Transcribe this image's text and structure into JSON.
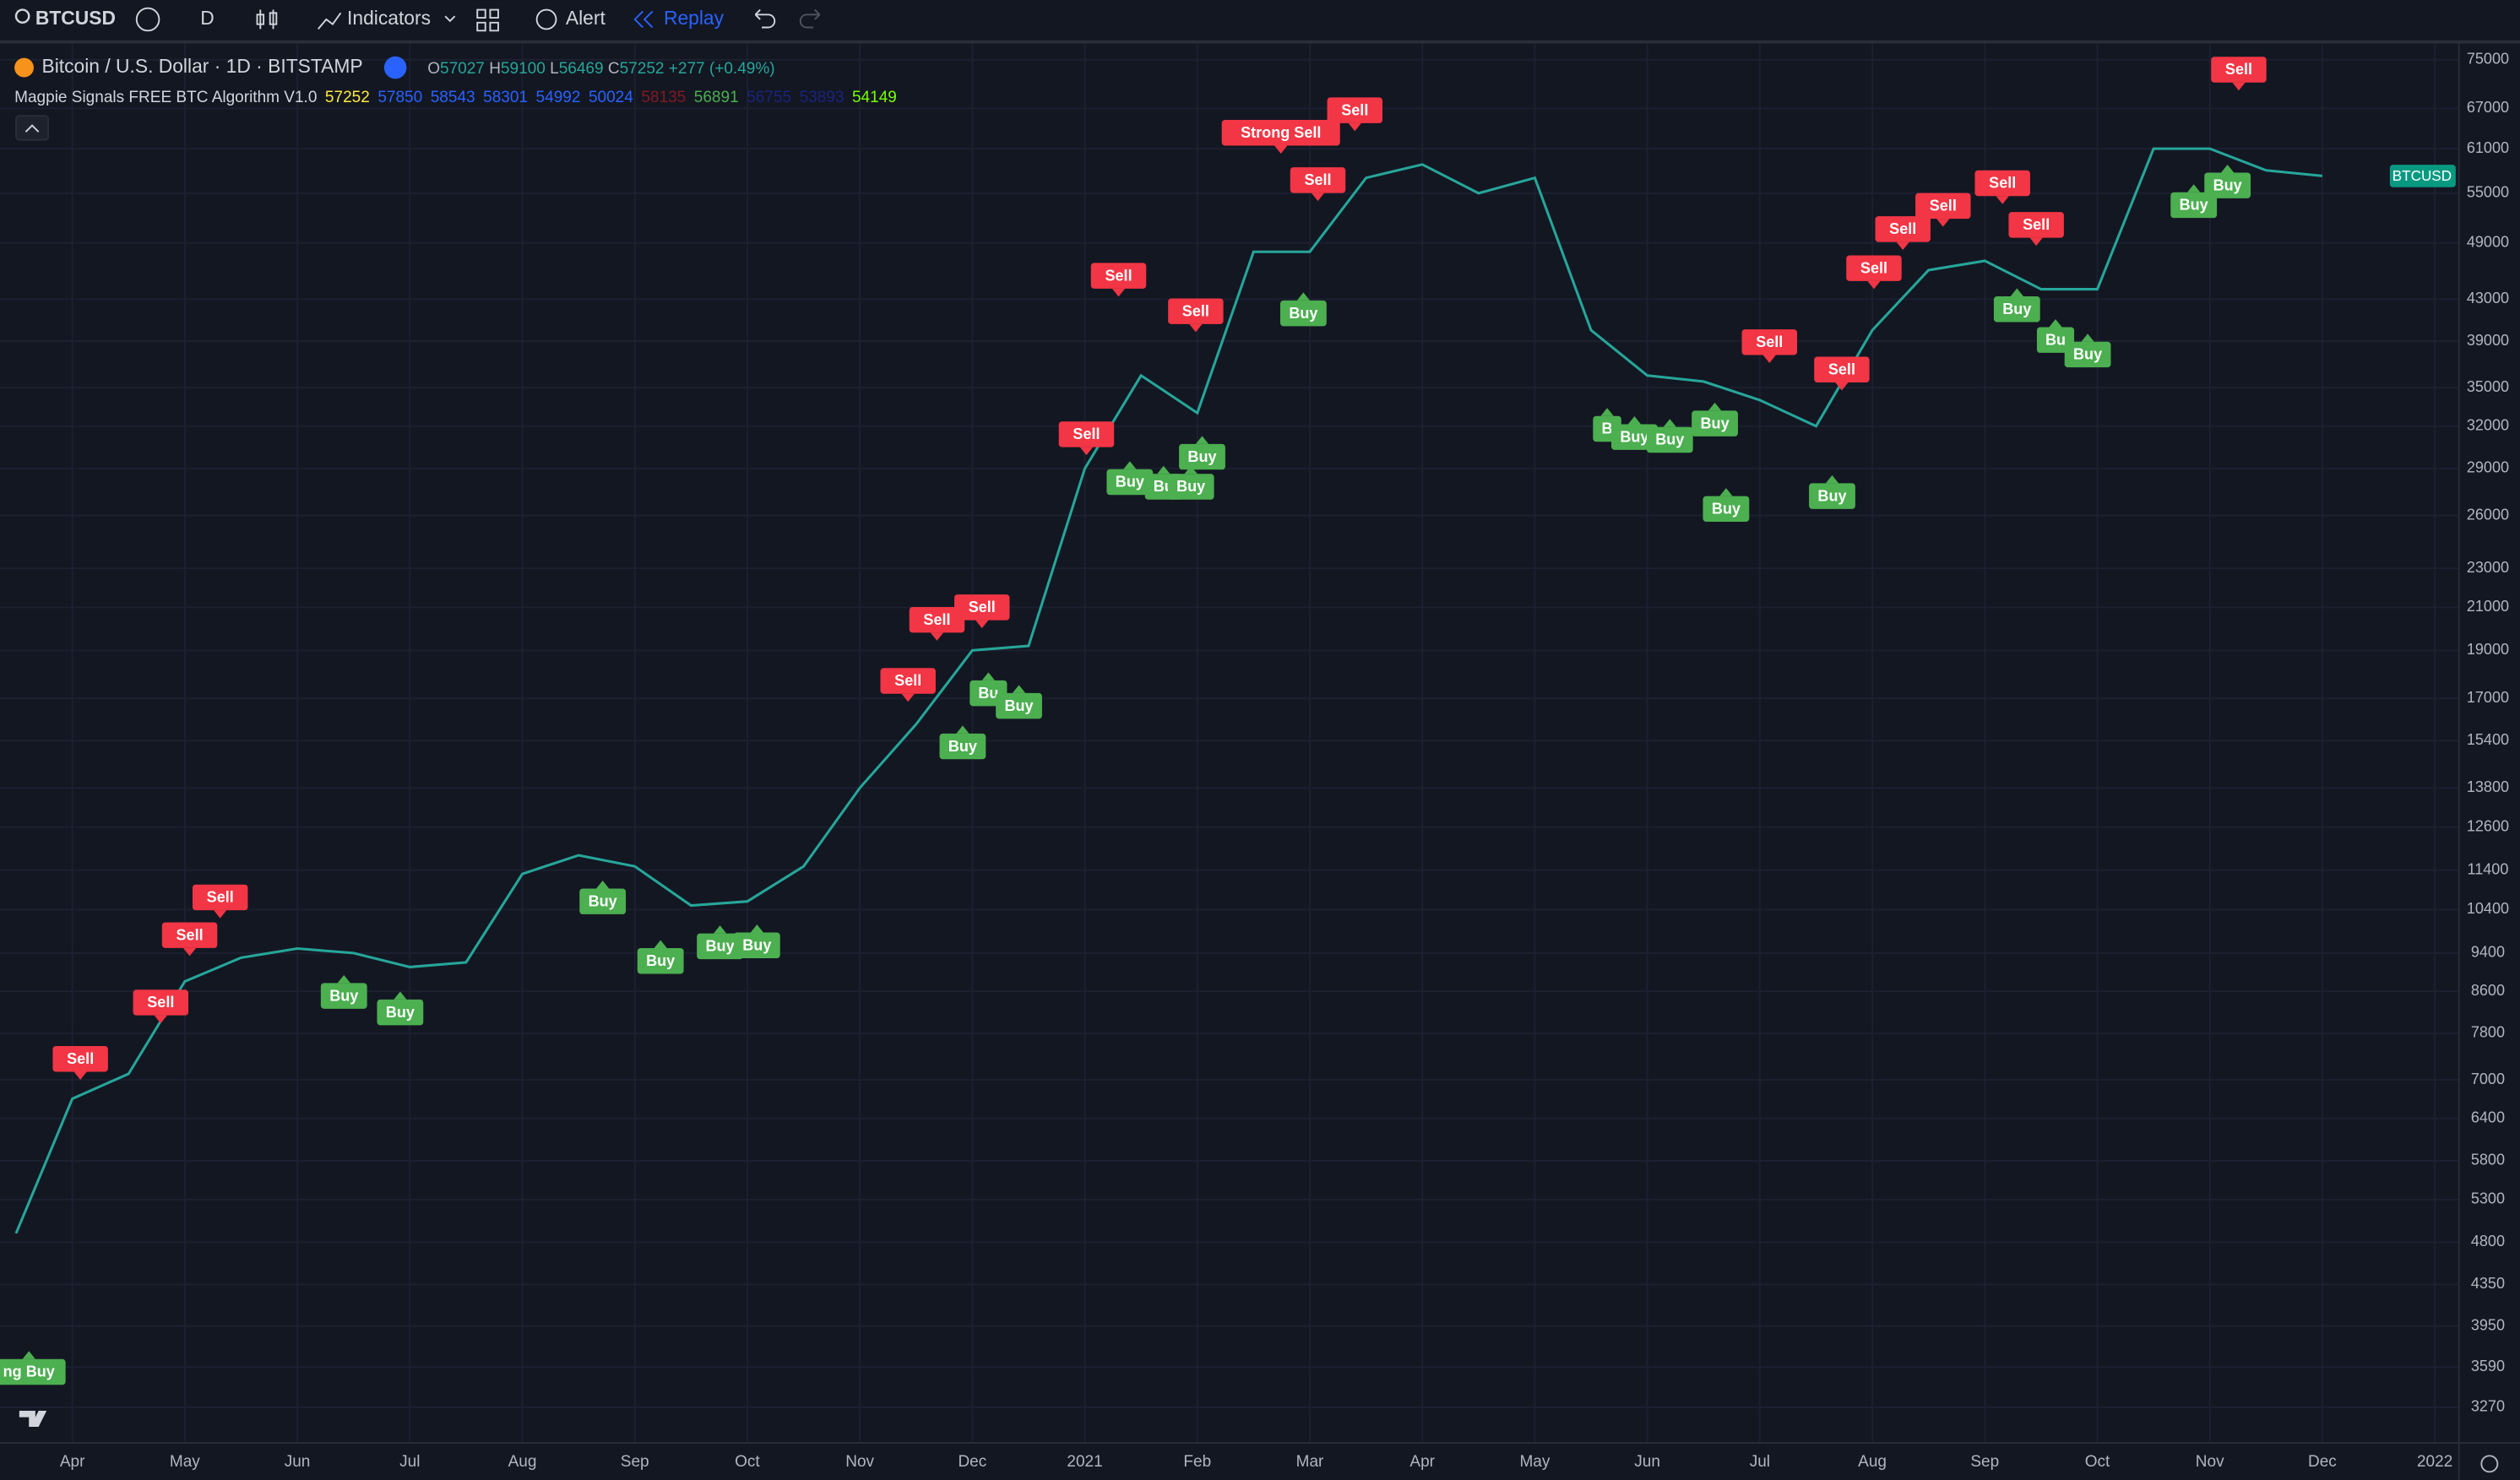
{
  "toolbar": {
    "symbol": "BTCUSD",
    "interval": "D",
    "indicators": "Indicators",
    "alert": "Alert",
    "replay": "Replay"
  },
  "legend": {
    "title": "Bitcoin / U.S. Dollar · 1D · BITSTAMP",
    "o": "O",
    "open": "57027",
    "h": "H",
    "high": "59100",
    "l": "L",
    "low": "56469",
    "c": "C",
    "close": "57252",
    "change": "+277 (+0.49%)",
    "indicator": "Magpie Signals FREE BTC Algorithm V1.0",
    "indicator_values": [
      "57252",
      "57850",
      "58543",
      "58301",
      "54992",
      "50024",
      "58135",
      "56891",
      "56755",
      "53893",
      "54149"
    ]
  },
  "price_tag": "BTCUSD",
  "chart_data": {
    "type": "line",
    "color": "#26a69a",
    "log_scale": true,
    "grid": true,
    "categories": [
      null,
      "Apr",
      null,
      "May",
      null,
      "Jun",
      null,
      "Jul",
      null,
      "Aug",
      null,
      "Sep",
      null,
      "Oct",
      null,
      "Nov",
      null,
      "Dec",
      null,
      "2021",
      null,
      "Feb",
      null,
      "Mar",
      null,
      "Apr",
      null,
      "May",
      null,
      "Jun",
      null,
      "Jul",
      null,
      "Aug",
      null,
      "Sep",
      null,
      "Oct",
      null,
      "Nov",
      null,
      "Dec",
      null,
      "2022"
    ],
    "values": [
      4900,
      6700,
      7100,
      8800,
      9300,
      9500,
      9400,
      9100,
      9200,
      11300,
      11800,
      11500,
      10500,
      10600,
      11500,
      13800,
      16000,
      19000,
      19200,
      29000,
      36000,
      33000,
      48000,
      48000,
      57000,
      58800,
      55000,
      57000,
      40000,
      36000,
      35500,
      34000,
      32000,
      40000,
      46000,
      47000,
      44000,
      44000,
      61000,
      61000,
      58000,
      57252,
      null,
      null
    ],
    "ylim": [
      3010,
      77900
    ],
    "yticks": [
      75000,
      67000,
      61000,
      55000,
      49000,
      43000,
      39000,
      35000,
      32000,
      29000,
      26000,
      23000,
      21000,
      19000,
      17000,
      15400,
      13800,
      12600,
      11400,
      10400,
      9400,
      8600,
      7800,
      7000,
      6400,
      5800,
      5300,
      4800,
      4350,
      3950,
      3590,
      3270
    ],
    "signals": [
      {
        "text": "Sell",
        "value": 7350
      },
      {
        "text": "Sell",
        "value": 8380
      },
      {
        "text": "Sell",
        "value": 9800
      },
      {
        "text": "Sell",
        "value": 10700
      },
      {
        "text": "Sell",
        "value": 17700
      },
      {
        "text": "Sell",
        "value": 20400
      },
      {
        "text": "Sell",
        "value": 21000
      },
      {
        "text": "Sell",
        "value": 31400
      },
      {
        "text": "Sell",
        "value": 45400
      },
      {
        "text": "Sell",
        "value": 41800
      },
      {
        "text": "Strong Sell",
        "value": 63300
      },
      {
        "text": "Sell",
        "value": 66700
      },
      {
        "text": "Sell",
        "value": 56700
      },
      {
        "text": "Sell",
        "value": 38900
      },
      {
        "text": "Sell",
        "value": 36500
      },
      {
        "text": "Sell",
        "value": 46200
      },
      {
        "text": "Sell",
        "value": 50600
      },
      {
        "text": "Sell",
        "value": 53400
      },
      {
        "text": "Sell",
        "value": 56300
      },
      {
        "text": "Sell",
        "value": 51100
      },
      {
        "text": "Sell",
        "value": 73300
      },
      {
        "text": "ng Buy",
        "value": 3550
      },
      {
        "text": "Buy",
        "value": 8510
      },
      {
        "text": "Buy",
        "value": 8190
      },
      {
        "text": "Buy",
        "value": 10600
      },
      {
        "text": "Buy",
        "value": 9230
      },
      {
        "text": "Buy",
        "value": 9550
      },
      {
        "text": "Buy",
        "value": 9570
      },
      {
        "text": "Buy",
        "value": 15200
      },
      {
        "text": "Bu",
        "value": 17200
      },
      {
        "text": "Buy",
        "value": 16700
      },
      {
        "text": "Buy",
        "value": 28100
      },
      {
        "text": "Bu",
        "value": 27800
      },
      {
        "text": "Buy",
        "value": 27800
      },
      {
        "text": "Buy",
        "value": 29800
      },
      {
        "text": "Buy",
        "value": 41600
      },
      {
        "text": "B",
        "value": 31800
      },
      {
        "text": "Buy",
        "value": 31200
      },
      {
        "text": "Buy",
        "value": 31000
      },
      {
        "text": "Buy",
        "value": 32200
      },
      {
        "text": "Buy",
        "value": 26400
      },
      {
        "text": "Buy",
        "value": 27200
      },
      {
        "text": "Buy",
        "value": 42000
      },
      {
        "text": "Bu",
        "value": 39100
      },
      {
        "text": "Buy",
        "value": 37800
      },
      {
        "text": "Buy",
        "value": 53500
      },
      {
        "text": "Buy",
        "value": 56000
      }
    ]
  }
}
